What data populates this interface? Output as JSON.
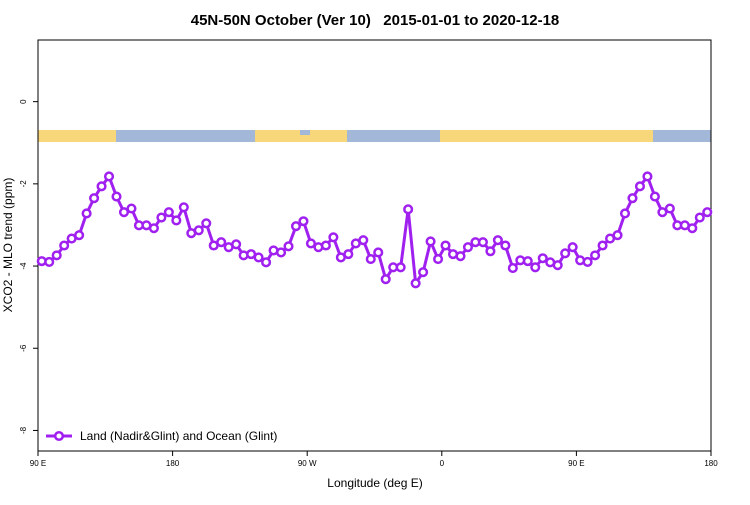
{
  "chart_data": {
    "type": "line",
    "title": "45N-50N October (Ver 10)   2015-01-01 to 2020-12-18",
    "xlabel": "Longitude (deg E)",
    "ylabel": "XCO2 - MLO trend (ppm)",
    "xlim": [
      90,
      540
    ],
    "xticks": [
      {
        "value": 90,
        "label": "90 E"
      },
      {
        "value": 180,
        "label": "180"
      },
      {
        "value": 270,
        "label": "90 W"
      },
      {
        "value": 360,
        "label": "0"
      },
      {
        "value": 450,
        "label": "90 E"
      },
      {
        "value": 540,
        "label": "180"
      }
    ],
    "ylim": [
      -8.5,
      1.5
    ],
    "yticks": [
      0,
      -2,
      -4,
      -6,
      -8
    ],
    "legend": "bottom-left",
    "x": [
      92.5,
      97.5,
      102.5,
      107.5,
      112.5,
      117.5,
      122.5,
      127.5,
      132.5,
      137.5,
      142.5,
      147.5,
      152.5,
      157.5,
      162.5,
      167.5,
      172.5,
      177.5,
      182.5,
      187.5,
      192.5,
      197.5,
      202.5,
      207.5,
      212.5,
      217.5,
      222.5,
      227.5,
      232.5,
      237.5,
      242.5,
      247.5,
      252.5,
      257.5,
      262.5,
      267.5,
      272.5,
      277.5,
      282.5,
      287.5,
      292.5,
      297.5,
      302.5,
      307.5,
      312.5,
      317.5,
      322.5,
      327.5,
      332.5,
      337.5,
      342.5,
      347.5,
      352.5,
      357.5,
      362.5,
      367.5,
      372.5,
      377.5,
      382.5,
      387.5,
      392.5,
      397.5,
      402.5,
      407.5,
      412.5,
      417.5,
      422.5,
      427.5,
      432.5,
      437.5,
      442.5,
      447.5,
      452.5,
      457.5,
      462.5,
      467.5,
      472.5,
      477.5,
      482.5,
      487.5,
      492.5,
      497.5,
      502.5,
      507.5,
      512.5,
      517.5,
      522.5,
      527.5,
      532.5,
      537.5
    ],
    "series": [
      {
        "name": "Land (Nadir&Glint) and Ocean (Glint)",
        "color": "#a020f0",
        "values": [
          -3.88,
          -3.9,
          -3.74,
          -3.5,
          -3.33,
          -3.25,
          -2.72,
          -2.35,
          -2.06,
          -1.82,
          -2.31,
          -2.69,
          -2.6,
          -3.01,
          -3.01,
          -3.08,
          -2.82,
          -2.69,
          -2.89,
          -2.57,
          -3.2,
          -3.13,
          -2.96,
          -3.5,
          -3.42,
          -3.54,
          -3.47,
          -3.74,
          -3.71,
          -3.79,
          -3.91,
          -3.62,
          -3.67,
          -3.52,
          -3.03,
          -2.91,
          -3.45,
          -3.54,
          -3.5,
          -3.3,
          -3.79,
          -3.71,
          -3.45,
          -3.37,
          -3.83,
          -3.67,
          -4.32,
          -4.03,
          -4.03,
          -2.62,
          -4.42,
          -4.15,
          -3.4,
          -3.83,
          -3.5,
          -3.71,
          -3.76,
          -3.54,
          -3.42,
          -3.42,
          -3.64,
          -3.37,
          -3.5,
          -4.05,
          -3.86,
          -3.88,
          -4.03,
          -3.81,
          -3.91,
          -3.98,
          -3.69,
          -3.54,
          -3.86,
          -3.9,
          -3.74,
          -3.5,
          -3.33,
          -3.25,
          -2.72,
          -2.35,
          -2.06,
          -1.82,
          -2.31,
          -2.69,
          -2.6,
          -3.01,
          -3.01,
          -3.08,
          -2.82,
          -2.69
        ]
      }
    ]
  }
}
